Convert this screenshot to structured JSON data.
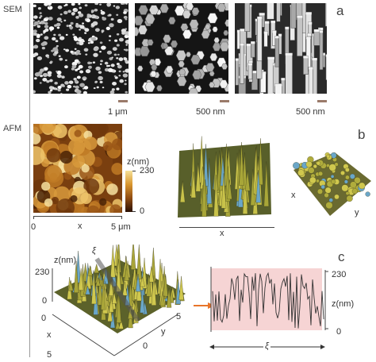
{
  "figure": {
    "row_labels": {
      "sem": "SEM",
      "afm": "AFM"
    },
    "panel_letters": {
      "a": "a",
      "b": "b",
      "c": "c"
    },
    "sem": {
      "scale_1": "1 μm",
      "scale_2": "500 nm",
      "scale_3": "500 nm"
    },
    "afm_2d": {
      "colorbar_title": "z(nm)",
      "colorbar_max": "230",
      "colorbar_min": "0",
      "x_min": "0",
      "x_label": "x",
      "x_max": "5 μm"
    },
    "afm_3d_side": {
      "x_label": "x"
    },
    "afm_3d_top": {
      "x_label": "x",
      "y_label": "y"
    },
    "afm_3d_c": {
      "z_title": "z(nm)",
      "z_max": "230",
      "z_min": "0",
      "xi_label": "ξ",
      "x_label": "x",
      "y_label": "y",
      "x_zero": "0",
      "x_five": "5",
      "y_zero": "0",
      "y_five": "5"
    },
    "profile": {
      "z_max": "230",
      "z_title": "z(nm)",
      "z_min": "0",
      "xi_label": "ξ"
    },
    "colors": {
      "afm_dark": "#3a1a05",
      "afm_mid": "#b0651a",
      "afm_light": "#f3d27a",
      "pillar_yellow": "#c8c24a",
      "pillar_blue": "#6aa6c8",
      "profile_fill": "#f6d4d4",
      "arrow": "#e8752a"
    }
  }
}
